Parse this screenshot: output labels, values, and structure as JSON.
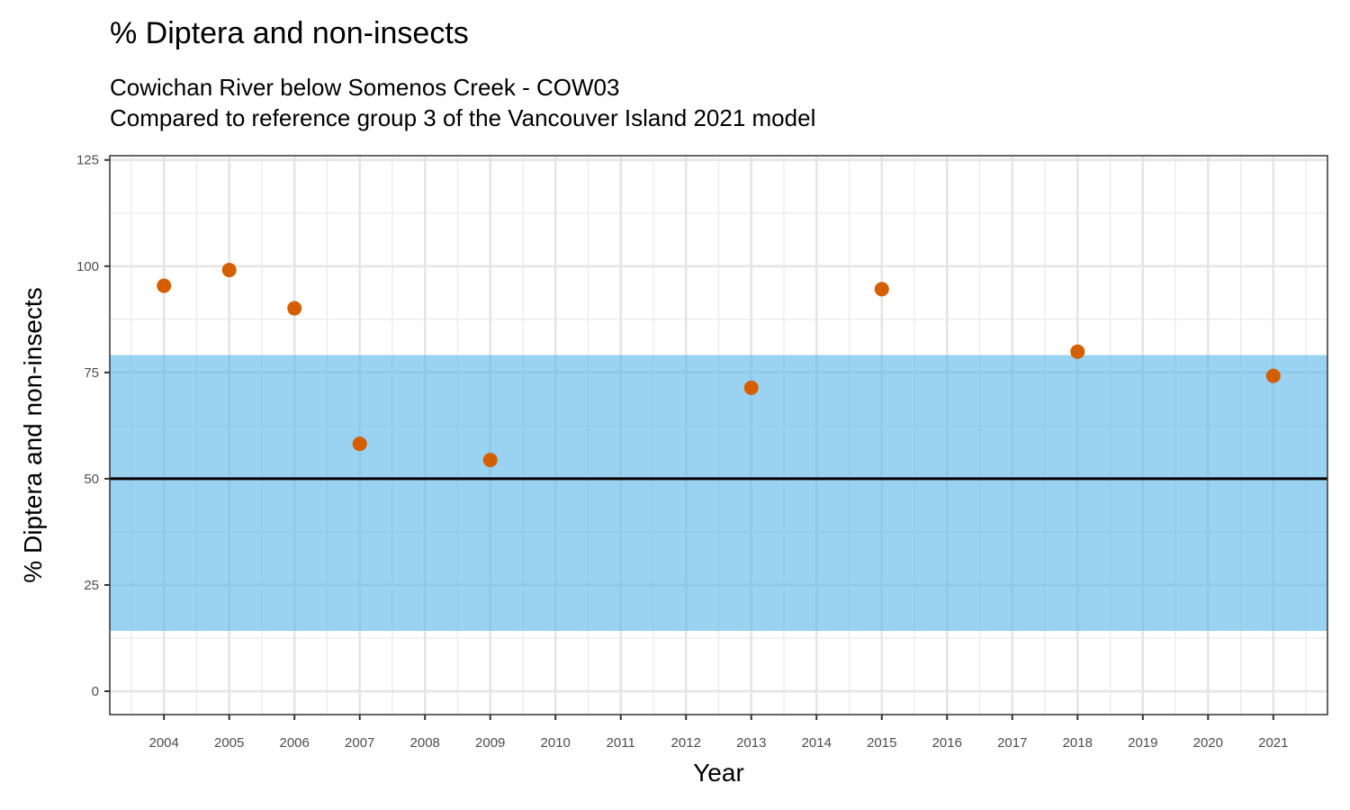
{
  "chart_data": {
    "type": "scatter",
    "title": "% Diptera and non-insects",
    "subtitle_lines": [
      "Cowichan River below Somenos Creek - COW03",
      "Compared to reference group 3 of the Vancouver Island 2021 model"
    ],
    "xlabel": "Year",
    "ylabel": "% Diptera and non-insects",
    "xlim": [
      2003.17,
      2021.83
    ],
    "ylim": [
      -5.5,
      126
    ],
    "x_ticks": [
      2004,
      2005,
      2006,
      2007,
      2008,
      2009,
      2010,
      2011,
      2012,
      2013,
      2014,
      2015,
      2016,
      2017,
      2018,
      2019,
      2020,
      2021
    ],
    "y_ticks": [
      0,
      25,
      50,
      75,
      100,
      125
    ],
    "grid": true,
    "points": [
      {
        "x": 2004,
        "y": 95.4
      },
      {
        "x": 2005,
        "y": 99.1
      },
      {
        "x": 2006,
        "y": 90.1
      },
      {
        "x": 2007,
        "y": 58.2
      },
      {
        "x": 2009,
        "y": 54.4
      },
      {
        "x": 2013,
        "y": 71.4
      },
      {
        "x": 2015,
        "y": 94.6
      },
      {
        "x": 2018,
        "y": 79.9
      },
      {
        "x": 2021,
        "y": 74.2
      }
    ],
    "reference_band": {
      "low": 14.2,
      "high": 79.1
    },
    "reference_line": 50,
    "colors": {
      "points": "#D55E00",
      "band": "#56B4E9",
      "line": "#000000"
    }
  }
}
